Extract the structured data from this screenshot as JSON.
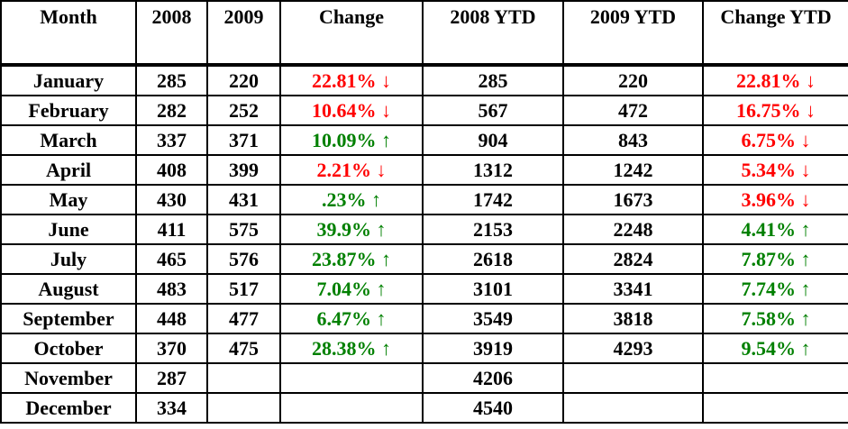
{
  "table": {
    "header": [
      "Month",
      "2008",
      "2009",
      "Change",
      "2008 YTD",
      "2009 YTD",
      "Change YTD"
    ],
    "rows": [
      [
        "January",
        "285",
        "220",
        "22.81% ↓",
        "285",
        "220",
        "22.81% ↓"
      ],
      [
        "February",
        "282",
        "252",
        "10.64% ↓",
        "567",
        "472",
        "16.75% ↓"
      ],
      [
        "March",
        "337",
        "371",
        "10.09% ↑",
        "904",
        "843",
        "6.75% ↓"
      ],
      [
        "April",
        "408",
        "399",
        "2.21% ↓",
        "1312",
        "1242",
        "5.34% ↓"
      ],
      [
        "May",
        "430",
        "431",
        ".23% ↑",
        "1742",
        "1673",
        "3.96% ↓"
      ],
      [
        "June",
        "411",
        "575",
        "39.9% ↑",
        "2153",
        "2248",
        "4.41% ↑"
      ],
      [
        "July",
        "465",
        "576",
        "23.87% ↑",
        "2618",
        "2824",
        "7.87% ↑"
      ],
      [
        "August",
        "483",
        "517",
        "7.04% ↑",
        "3101",
        "3341",
        "7.74% ↑"
      ],
      [
        "September",
        "448",
        "477",
        "6.47% ↑",
        "3549",
        "3818",
        "7.58% ↑"
      ],
      [
        "October",
        "370",
        "475",
        "28.38% ↑",
        "3919",
        "4293",
        "9.54% ↑"
      ],
      [
        "November",
        "287",
        null,
        null,
        "4206",
        null,
        null
      ],
      [
        "December",
        "334",
        null,
        null,
        "4540",
        null,
        null
      ]
    ],
    "colors": {
      "down": "#ff0000",
      "up": "#008000",
      "text": "#000000"
    }
  }
}
